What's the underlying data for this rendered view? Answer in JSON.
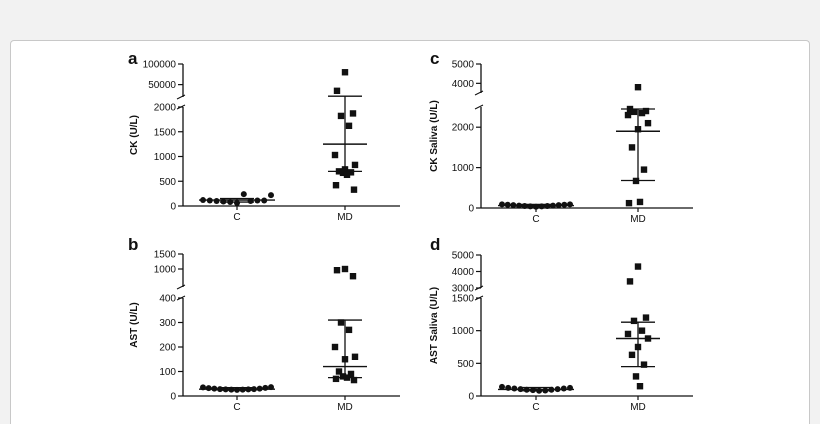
{
  "chart_data": [
    {
      "type": "scatter",
      "panel_label": "a",
      "ylabel": "CK (U/L)",
      "categories": [
        "C",
        "MD"
      ],
      "axis_segments": [
        {
          "range": [
            0,
            2000
          ],
          "ticks": [
            0,
            500,
            1000,
            1500,
            2000
          ]
        },
        {
          "range": [
            20000,
            100000
          ],
          "ticks": [
            50000,
            100000
          ]
        }
      ],
      "series": [
        {
          "category": "C",
          "marker": "circle",
          "values": [
            120,
            110,
            100,
            90,
            80,
            60,
            240,
            100,
            110,
            110,
            220
          ]
        },
        {
          "category": "MD",
          "marker": "square",
          "values": [
            80000,
            35000,
            1870,
            1820,
            1620,
            1030,
            830,
            740,
            700,
            680,
            670,
            630,
            420,
            330
          ]
        }
      ],
      "summary": [
        {
          "category": "C",
          "mean": 120,
          "error_low": 80,
          "error_high": 150
        },
        {
          "category": "MD",
          "mean": 1250,
          "error_low": 700,
          "error_high": 22000
        }
      ]
    },
    {
      "type": "scatter",
      "panel_label": "b",
      "ylabel": "AST (U/L)",
      "categories": [
        "C",
        "MD"
      ],
      "axis_segments": [
        {
          "range": [
            0,
            400
          ],
          "ticks": [
            0,
            100,
            200,
            300,
            400
          ]
        },
        {
          "range": [
            400,
            1500
          ],
          "ticks": [
            1000,
            1500
          ]
        }
      ],
      "series": [
        {
          "category": "C",
          "marker": "circle",
          "values": [
            35,
            32,
            30,
            28,
            27,
            26,
            25,
            26,
            27,
            28,
            30,
            33,
            36
          ]
        },
        {
          "category": "MD",
          "marker": "square",
          "values": [
            1000,
            960,
            760,
            300,
            270,
            200,
            160,
            150,
            100,
            90,
            80,
            75,
            70,
            65
          ]
        }
      ],
      "summary": [
        {
          "category": "C",
          "mean": 28,
          "error_low": 24,
          "error_high": 34
        },
        {
          "category": "MD",
          "mean": 120,
          "error_low": 75,
          "error_high": 310
        }
      ]
    },
    {
      "type": "scatter",
      "panel_label": "c",
      "ylabel": "CK Saliva (U/L)",
      "categories": [
        "C",
        "MD"
      ],
      "axis_segments": [
        {
          "range": [
            0,
            2500
          ],
          "ticks": [
            0,
            1000,
            2000
          ]
        },
        {
          "range": [
            3500,
            5000
          ],
          "ticks": [
            4000,
            5000
          ]
        }
      ],
      "series": [
        {
          "category": "C",
          "marker": "circle",
          "values": [
            90,
            80,
            70,
            60,
            50,
            40,
            30,
            40,
            50,
            60,
            70,
            80,
            90
          ]
        },
        {
          "category": "MD",
          "marker": "square",
          "values": [
            3800,
            2450,
            2400,
            2380,
            2350,
            2300,
            2100,
            1950,
            1500,
            950,
            670,
            150,
            120
          ]
        }
      ],
      "summary": [
        {
          "category": "C",
          "mean": 60,
          "error_low": 40,
          "error_high": 90
        },
        {
          "category": "MD",
          "mean": 1900,
          "error_low": 680,
          "error_high": 2450
        }
      ]
    },
    {
      "type": "scatter",
      "panel_label": "d",
      "ylabel": "AST Saliva (U/L)",
      "categories": [
        "C",
        "MD"
      ],
      "axis_segments": [
        {
          "range": [
            0,
            1500
          ],
          "ticks": [
            0,
            500,
            1000,
            1500
          ]
        },
        {
          "range": [
            3000,
            5000
          ],
          "ticks": [
            3000,
            4000,
            5000
          ]
        }
      ],
      "series": [
        {
          "category": "C",
          "marker": "circle",
          "values": [
            140,
            125,
            115,
            105,
            95,
            90,
            80,
            85,
            95,
            105,
            115,
            125
          ]
        },
        {
          "category": "MD",
          "marker": "square",
          "values": [
            4300,
            3400,
            1200,
            1150,
            1000,
            950,
            880,
            750,
            630,
            480,
            300,
            150
          ]
        }
      ],
      "summary": [
        {
          "category": "C",
          "mean": 100,
          "error_low": 80,
          "error_high": 130
        },
        {
          "category": "MD",
          "mean": 880,
          "error_low": 450,
          "error_high": 1130
        }
      ]
    }
  ]
}
